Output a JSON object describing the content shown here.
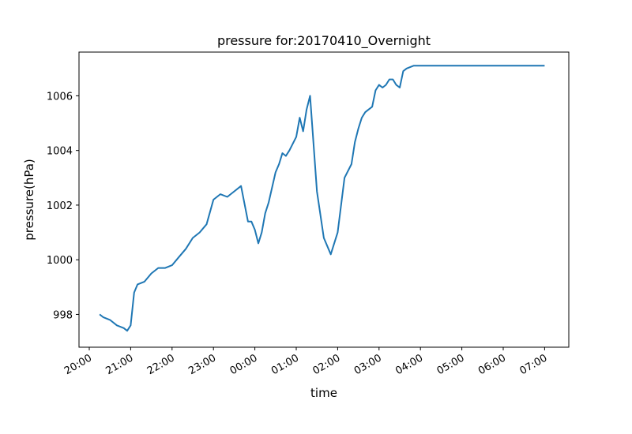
{
  "chart_data": {
    "type": "line",
    "title": "pressure for:20170410_Overnight",
    "xlabel": "time",
    "ylabel": "pressure(hPa)",
    "grid": false,
    "legend": "none",
    "x_unit": "clock time HH:MM (overnight, 20:00 → 07:00)",
    "xlim": [
      "20:00",
      "07:00"
    ],
    "ylim": [
      996.8,
      1007.6
    ],
    "x_ticks": [
      "20:00",
      "21:00",
      "22:00",
      "23:00",
      "00:00",
      "01:00",
      "02:00",
      "03:00",
      "04:00",
      "05:00",
      "06:00",
      "07:00"
    ],
    "y_ticks": [
      998,
      1000,
      1002,
      1004,
      1006
    ],
    "colors": {
      "series": "#1f77b4"
    },
    "series": [
      {
        "x": [
          "20:15",
          "20:20",
          "20:30",
          "20:40",
          "20:50",
          "20:55",
          "21:00",
          "21:05",
          "21:10",
          "21:20",
          "21:30",
          "21:40",
          "21:50",
          "22:00",
          "22:10",
          "22:20",
          "22:30",
          "22:40",
          "22:50",
          "23:00",
          "23:10",
          "23:20",
          "23:30",
          "23:40",
          "23:50",
          "23:55",
          "00:00",
          "00:05",
          "00:10",
          "00:15",
          "00:20",
          "00:30",
          "00:35",
          "00:40",
          "00:45",
          "00:50",
          "01:00",
          "01:05",
          "01:10",
          "01:15",
          "01:20",
          "01:30",
          "01:40",
          "01:50",
          "02:00",
          "02:10",
          "02:20",
          "02:25",
          "02:30",
          "02:35",
          "02:40",
          "02:45",
          "02:50",
          "02:55",
          "03:00",
          "03:05",
          "03:10",
          "03:15",
          "03:20",
          "03:25",
          "03:30",
          "03:35",
          "03:40",
          "03:50",
          "04:00",
          "04:10",
          "04:20",
          "04:30",
          "04:40",
          "04:50",
          "05:00",
          "05:10",
          "05:20",
          "05:30",
          "05:40",
          "05:50",
          "06:00",
          "06:10",
          "06:20",
          "06:30",
          "06:35",
          "06:40",
          "06:45",
          "06:50",
          "06:55",
          "07:00"
        ],
        "values": [
          998.0,
          997.9,
          997.8,
          997.6,
          997.5,
          997.4,
          997.6,
          998.8,
          999.1,
          999.2,
          999.5,
          999.7,
          999.7,
          999.8,
          1000.1,
          1000.4,
          1000.8,
          1001.0,
          1001.3,
          1002.2,
          1002.4,
          1002.3,
          1002.5,
          1002.7,
          1001.4,
          1001.4,
          1001.1,
          1000.6,
          1001.0,
          1001.7,
          1002.1,
          1003.2,
          1003.5,
          1003.9,
          1003.8,
          1004.0,
          1004.5,
          1005.2,
          1004.7,
          1005.5,
          1006.0,
          1002.5,
          1000.8,
          1000.2,
          1001.0,
          1003.0,
          1003.5,
          1004.3,
          1004.8,
          1005.2,
          1005.4,
          1005.5,
          1005.6,
          1006.2,
          1006.4,
          1006.3,
          1006.4,
          1006.6,
          1006.6,
          1006.4,
          1006.3,
          1006.9,
          1007.0,
          1007.1,
          1007.1,
          1007.1,
          1007.1,
          1007.1,
          1007.1,
          1007.1,
          1007.1,
          1007.1,
          1007.1,
          1007.1,
          1007.1,
          1007.1,
          1007.1,
          1007.1,
          1007.1,
          1007.1,
          1007.1,
          1007.1,
          1007.1,
          1007.1,
          1007.1,
          1007.1
        ]
      }
    ]
  }
}
